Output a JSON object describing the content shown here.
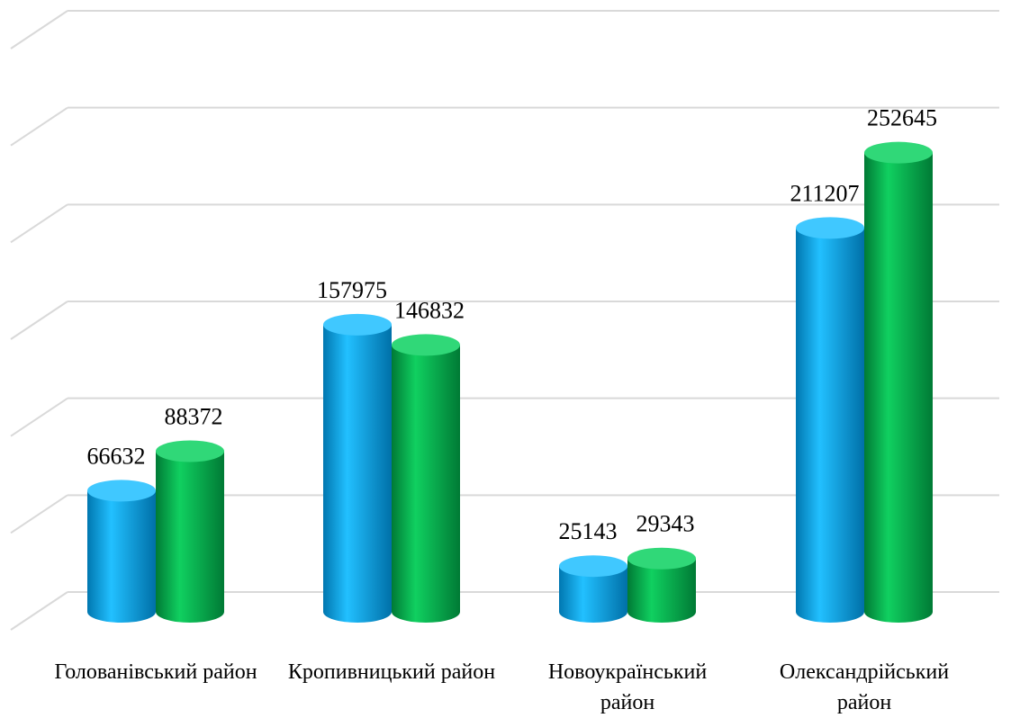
{
  "chart_data": {
    "type": "bar",
    "categories": [
      "Голованівський район",
      "Кропивницький район",
      "Новоукраїнський район",
      "Олександрійський район"
    ],
    "series": [
      {
        "color": "#00a8e8",
        "values": [
          66632,
          157975,
          25143,
          211207
        ]
      },
      {
        "color": "#00b050",
        "values": [
          88372,
          146832,
          29343,
          252645
        ]
      }
    ],
    "ylim": [
      0,
      300000
    ],
    "yticks": [
      0,
      50000,
      100000,
      150000,
      200000,
      250000,
      300000
    ],
    "grid": true
  }
}
